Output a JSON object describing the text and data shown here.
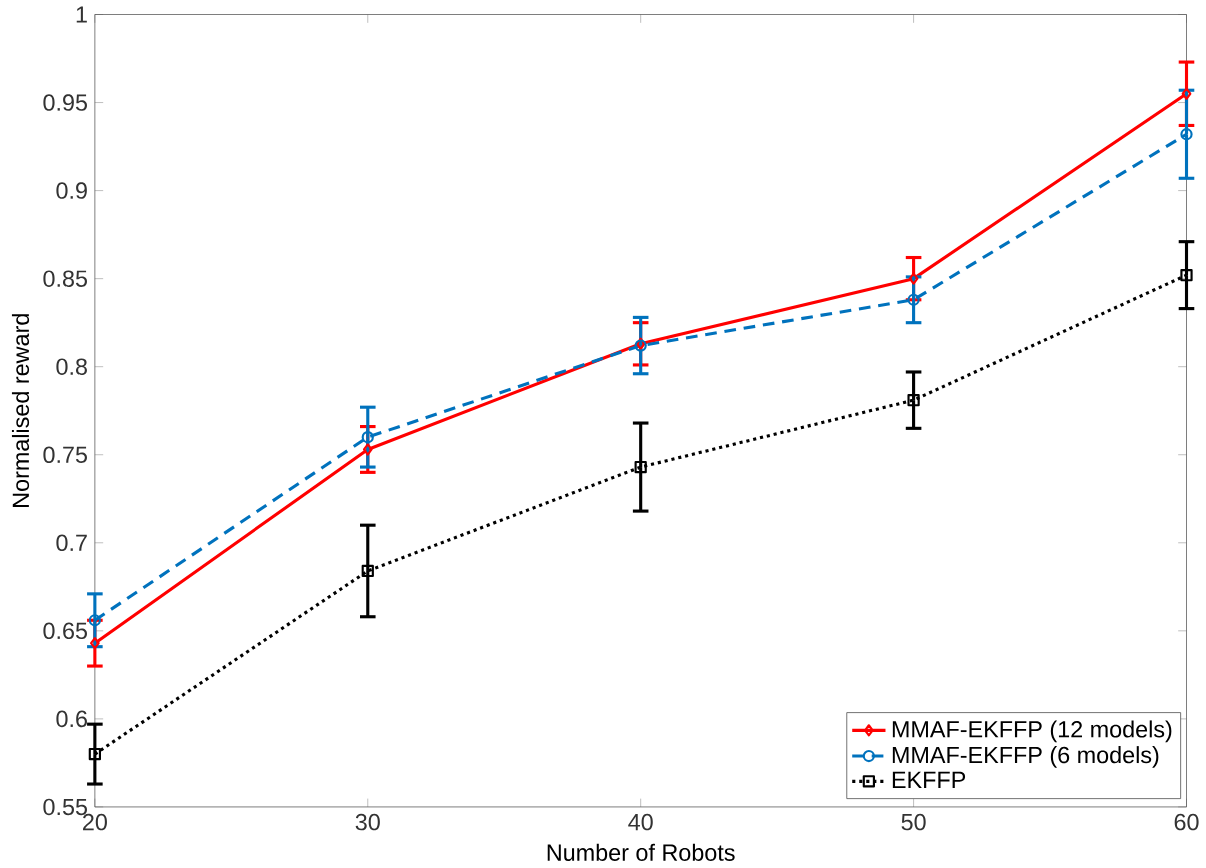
{
  "chart_data": {
    "type": "line",
    "xlabel": "Number of Robots",
    "ylabel": "Normalised reward",
    "x": [
      20,
      30,
      40,
      50,
      60
    ],
    "xlim": [
      20,
      60
    ],
    "xticks": [
      20,
      30,
      40,
      50,
      60
    ],
    "ylim": [
      0.55,
      1
    ],
    "yticks": [
      0.55,
      0.6,
      0.65,
      0.7,
      0.75,
      0.8,
      0.85,
      0.9,
      0.95,
      1
    ],
    "legend": "bottom right",
    "series": [
      {
        "name": "MMAF-EKFFP (12 models)",
        "color": "#ff0000",
        "marker": "diamond",
        "line_style": "solid",
        "values": [
          0.643,
          0.753,
          0.813,
          0.85,
          0.955
        ],
        "errors": [
          0.013,
          0.013,
          0.012,
          0.012,
          0.018
        ]
      },
      {
        "name": "MMAF-EKFFP (6 models)",
        "color": "#0072bd",
        "marker": "circle",
        "line_style": "dashed",
        "values": [
          0.656,
          0.76,
          0.812,
          0.838,
          0.932
        ],
        "errors": [
          0.015,
          0.017,
          0.016,
          0.013,
          0.025
        ]
      },
      {
        "name": "EKFFP",
        "color": "#000000",
        "marker": "square",
        "line_style": "dotted",
        "values": [
          0.58,
          0.684,
          0.743,
          0.781,
          0.852
        ],
        "errors": [
          0.017,
          0.026,
          0.025,
          0.016,
          0.019
        ]
      }
    ]
  }
}
